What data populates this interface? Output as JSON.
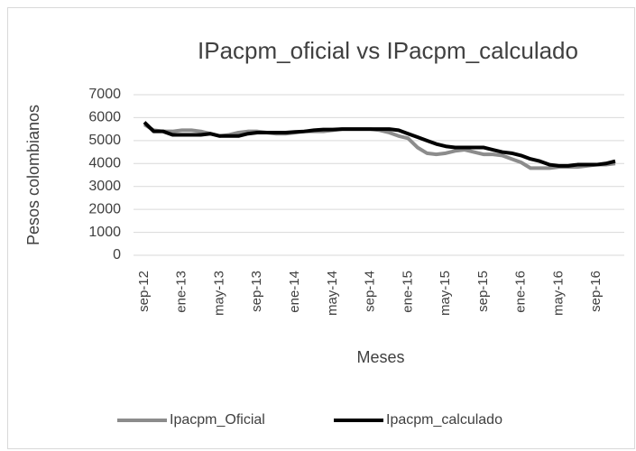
{
  "chart_data": {
    "type": "line",
    "title": "IPacpm_oficial vs IPacpm_calculado",
    "x_label": "Meses",
    "y_label": "Pesos colombianos",
    "categories": [
      "sep-12",
      null,
      null,
      null,
      "ene-13",
      null,
      null,
      null,
      "may-13",
      null,
      null,
      null,
      "sep-13",
      null,
      null,
      null,
      "ene-14",
      null,
      null,
      null,
      "may-14",
      null,
      null,
      null,
      "sep-14",
      null,
      null,
      null,
      "ene-15",
      null,
      null,
      null,
      "may-15",
      null,
      null,
      null,
      "sep-15",
      null,
      null,
      null,
      "ene-16",
      null,
      null,
      null,
      "may-16",
      null,
      null,
      null,
      "sep-16",
      null,
      null
    ],
    "series": [
      {
        "name": "Ipacpm_Oficial",
        "color": "#8c8c8c",
        "values": [
          5700,
          5450,
          5400,
          5400,
          5450,
          5450,
          5400,
          5300,
          5200,
          5250,
          5350,
          5400,
          5400,
          5350,
          5300,
          5300,
          5350,
          5400,
          5400,
          5400,
          5450,
          5500,
          5500,
          5500,
          5500,
          5450,
          5350,
          5200,
          5100,
          4700,
          4450,
          4400,
          4450,
          4550,
          4600,
          4500,
          4400,
          4400,
          4350,
          4200,
          4050,
          3800,
          3800,
          3800,
          3850,
          3850,
          3850,
          3900,
          3950,
          3950,
          4000
        ]
      },
      {
        "name": "Ipacpm_calculado",
        "color": "#000000",
        "values": [
          5800,
          5400,
          5400,
          5250,
          5250,
          5250,
          5250,
          5300,
          5200,
          5200,
          5200,
          5300,
          5350,
          5350,
          5350,
          5350,
          5380,
          5400,
          5450,
          5480,
          5480,
          5500,
          5500,
          5500,
          5500,
          5500,
          5500,
          5450,
          5300,
          5150,
          5000,
          4850,
          4750,
          4700,
          4700,
          4700,
          4700,
          4600,
          4500,
          4450,
          4350,
          4200,
          4100,
          3950,
          3900,
          3900,
          3950,
          3950,
          3950,
          4000,
          4100
        ]
      }
    ],
    "ylim": [
      0,
      7000
    ],
    "yticks": [
      0,
      1000,
      2000,
      3000,
      4000,
      5000,
      6000,
      7000
    ],
    "grid": true,
    "legend": "bottom"
  }
}
